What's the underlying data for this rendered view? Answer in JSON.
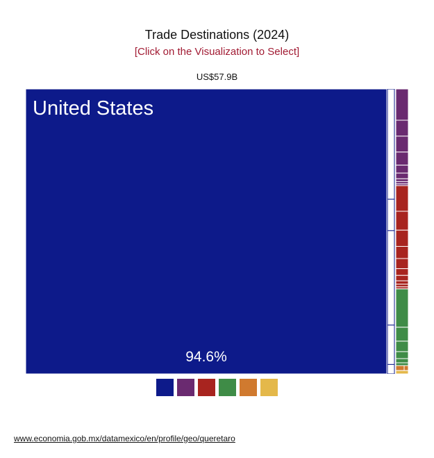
{
  "header": {
    "title": "Trade Destinations (2024)",
    "subtitle": "[Click on the Visualization to Select]",
    "total": "US$57.9B"
  },
  "chart_data": {
    "type": "treemap",
    "total": "US$57.9B",
    "groups": [
      {
        "key": "north-america",
        "color": "#0d1a8a",
        "tiles": [
          {
            "name": "United States",
            "share": 94.6,
            "label": "United States",
            "value_label": "94.6%"
          },
          {
            "name": "",
            "share": 2.0
          }
        ]
      },
      {
        "key": "europe",
        "color": "#6a2a70",
        "tiles": [
          {
            "name": "",
            "share": 0.55
          },
          {
            "name": "",
            "share": 0.28
          },
          {
            "name": "",
            "share": 0.28
          },
          {
            "name": "",
            "share": 0.23
          },
          {
            "name": "",
            "share": 0.14
          },
          {
            "name": "",
            "share": 0.1
          },
          {
            "name": "",
            "share": 0.05
          },
          {
            "name": "",
            "share": 0.04
          },
          {
            "name": "",
            "share": 0.03
          }
        ]
      },
      {
        "key": "asia",
        "color": "#a8241f",
        "tiles": [
          {
            "name": "",
            "share": 0.38
          },
          {
            "name": "",
            "share": 0.28
          },
          {
            "name": "",
            "share": 0.24
          },
          {
            "name": "",
            "share": 0.18
          },
          {
            "name": "",
            "share": 0.15
          },
          {
            "name": "",
            "share": 0.1
          },
          {
            "name": "",
            "share": 0.08
          },
          {
            "name": "",
            "share": 0.05
          },
          {
            "name": "",
            "share": 0.04
          },
          {
            "name": "",
            "share": 0.03
          }
        ]
      },
      {
        "key": "south-america",
        "color": "#3f8c47",
        "tiles": [
          {
            "name": "",
            "share": 0.55
          },
          {
            "name": "",
            "share": 0.2
          },
          {
            "name": "",
            "share": 0.15
          },
          {
            "name": "",
            "share": 0.1
          },
          {
            "name": "",
            "share": 0.06
          },
          {
            "name": "",
            "share": 0.04
          }
        ]
      },
      {
        "key": "africa",
        "color": "#d07a2f",
        "tiles": [
          {
            "name": "",
            "share": 0.04
          },
          {
            "name": "",
            "share": 0.02
          }
        ]
      },
      {
        "key": "oceania",
        "color": "#e4b84a",
        "tiles": [
          {
            "name": "",
            "share": 0.02
          }
        ]
      }
    ]
  },
  "legend": [
    {
      "key": "north-america",
      "color": "#0d1a8a"
    },
    {
      "key": "europe",
      "color": "#6a2a70"
    },
    {
      "key": "asia",
      "color": "#a8241f"
    },
    {
      "key": "south-america",
      "color": "#3f8c47"
    },
    {
      "key": "africa",
      "color": "#d07a2f"
    },
    {
      "key": "oceania",
      "color": "#e4b84a"
    }
  ],
  "footer": {
    "source_link": "www.economia.gob.mx/datamexico/en/profile/geo/queretaro"
  }
}
